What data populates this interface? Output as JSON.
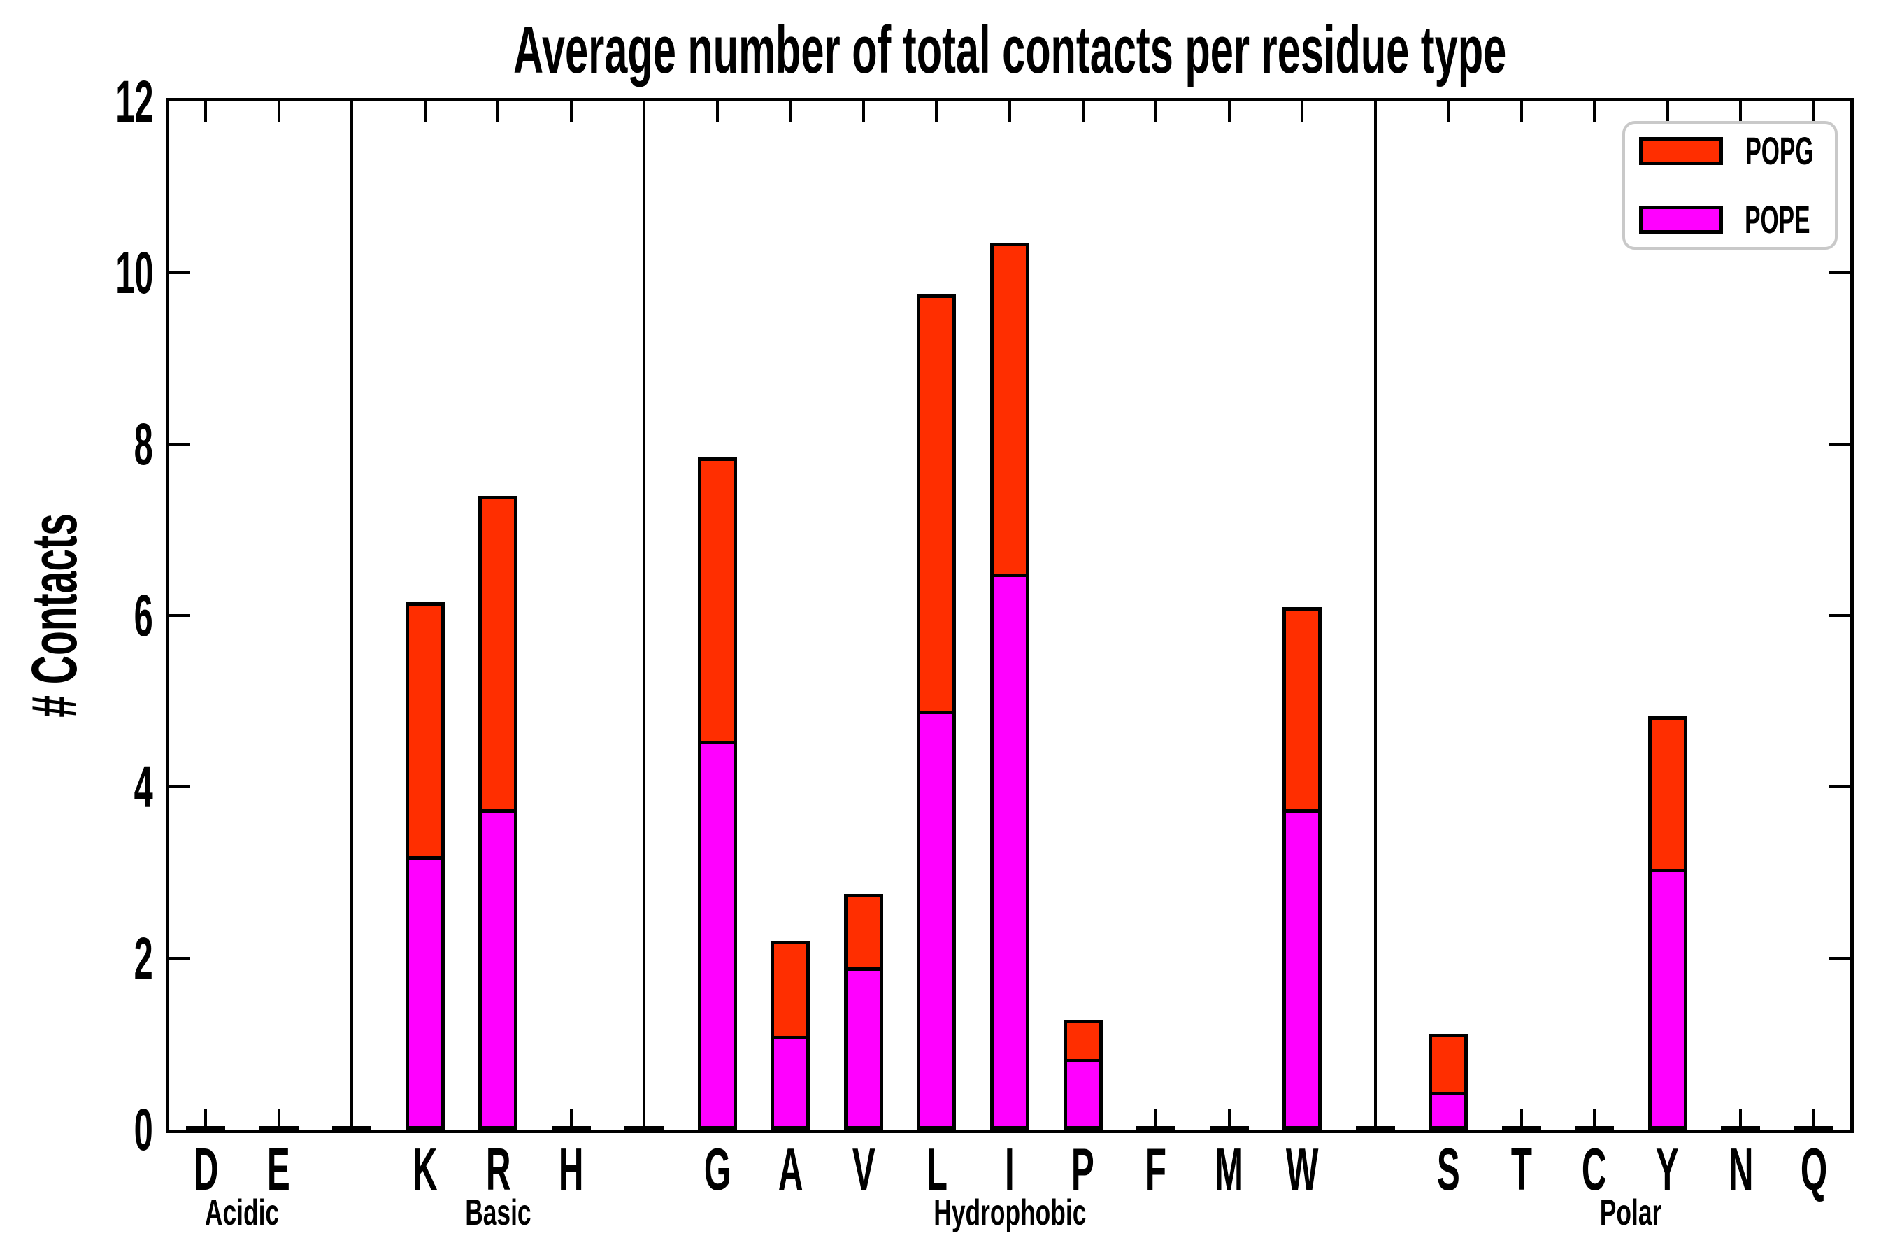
{
  "chart_data": {
    "type": "bar",
    "stacked": true,
    "title": "Average number of total contacts per residue type",
    "ylabel": "# Contacts",
    "xlabel": "",
    "ylim": [
      0,
      12
    ],
    "yticks": [
      0,
      2,
      4,
      6,
      8,
      10,
      12
    ],
    "grid": false,
    "stack_order_bottom_to_top": [
      "POPE",
      "POPG"
    ],
    "legend": {
      "position": "top-right",
      "entries": [
        {
          "name": "POPG",
          "color": "#ff2e00"
        },
        {
          "name": "POPE",
          "color": "#ff00ff"
        }
      ]
    },
    "colors": {
      "POPG": "#ff2e00",
      "POPE": "#ff00ff",
      "outline": "#000000",
      "axis": "#000000",
      "legend_border": "#c9c9c9",
      "background": "#ffffff"
    },
    "groups": [
      {
        "label": "Acidic",
        "categories": [
          "D",
          "E"
        ],
        "POPE": [
          0,
          0
        ],
        "POPG": [
          0,
          0
        ]
      },
      {
        "label": "Basic",
        "categories": [
          "K",
          "R",
          "H"
        ],
        "POPE": [
          3.15,
          3.7,
          0
        ],
        "POPG": [
          3.0,
          3.7,
          0
        ]
      },
      {
        "label": "Hydrophobic",
        "categories": [
          "G",
          "A",
          "V",
          "L",
          "I",
          "P",
          "F",
          "M",
          "W"
        ],
        "POPE": [
          4.5,
          1.05,
          1.85,
          4.85,
          6.45,
          0.78,
          0,
          0,
          3.7
        ],
        "POPG": [
          3.35,
          1.15,
          0.9,
          4.9,
          3.9,
          0.5,
          0,
          0,
          2.4
        ]
      },
      {
        "label": "Polar",
        "categories": [
          "S",
          "T",
          "C",
          "Y",
          "N",
          "Q"
        ],
        "POPE": [
          0.4,
          0,
          0,
          3.0,
          0,
          0
        ],
        "POPG": [
          0.72,
          0,
          0,
          1.82,
          0,
          0
        ]
      }
    ]
  }
}
